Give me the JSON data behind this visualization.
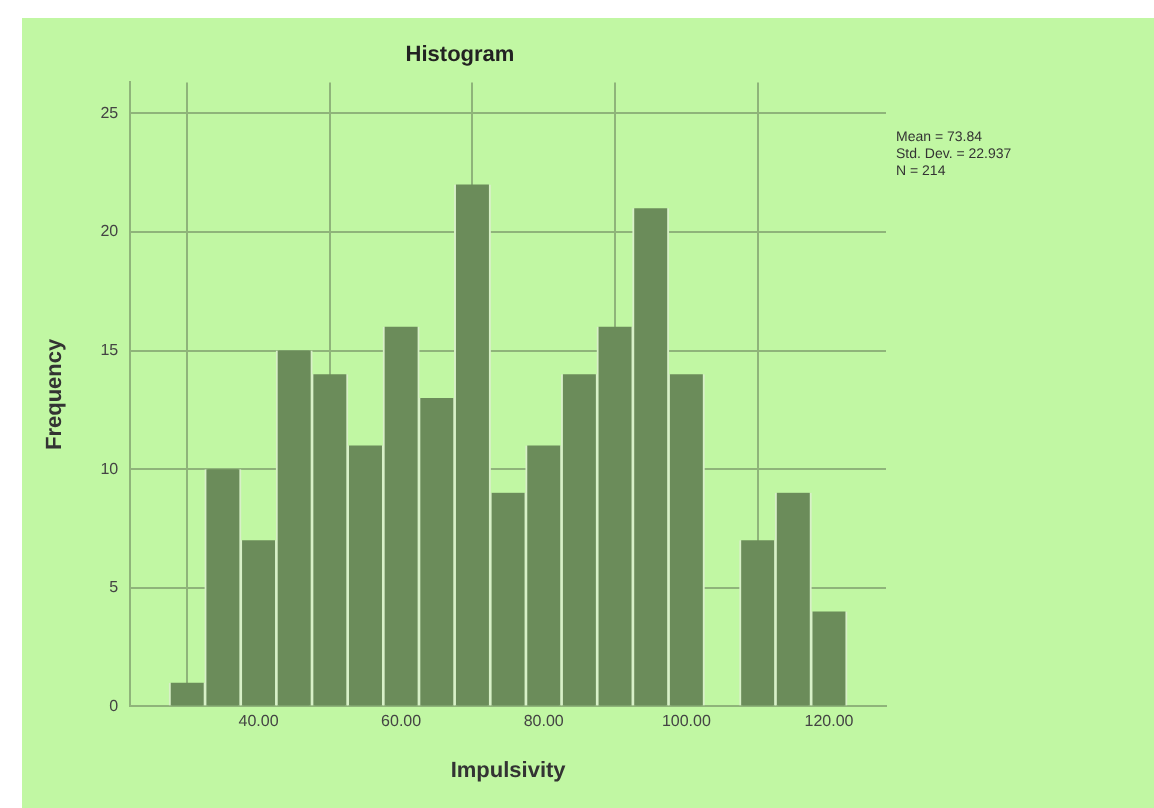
{
  "chart_data": {
    "type": "histogram",
    "title": "Histogram",
    "xlabel": "Impulsivity",
    "ylabel": "Frequency",
    "bins": [
      27.5,
      32.5,
      37.5,
      42.5,
      47.5,
      52.5,
      57.5,
      62.5,
      67.5,
      72.5,
      77.5,
      82.5,
      87.5,
      92.5,
      97.5,
      102.5,
      107.5,
      112.5,
      117.5,
      122.5
    ],
    "values": [
      1,
      10,
      7,
      15,
      14,
      11,
      16,
      13,
      22,
      9,
      11,
      14,
      16,
      21,
      14,
      0,
      7,
      9,
      4
    ],
    "color": "#6b8c5a",
    "xlim": [
      22,
      128
    ],
    "xticks": [
      {
        "value": 40,
        "label": "40.00"
      },
      {
        "value": 60,
        "label": "60.00"
      },
      {
        "value": 80,
        "label": "80.00"
      },
      {
        "value": 100,
        "label": "100.00"
      },
      {
        "value": 120,
        "label": "120.00"
      }
    ],
    "ylim": [
      0,
      26.3
    ],
    "yticks": [
      0,
      5,
      10,
      15,
      20,
      25
    ],
    "grid": true,
    "annotations": [
      "Mean = 73.84",
      "Std. Dev. = 22.937",
      "N = 214"
    ]
  }
}
